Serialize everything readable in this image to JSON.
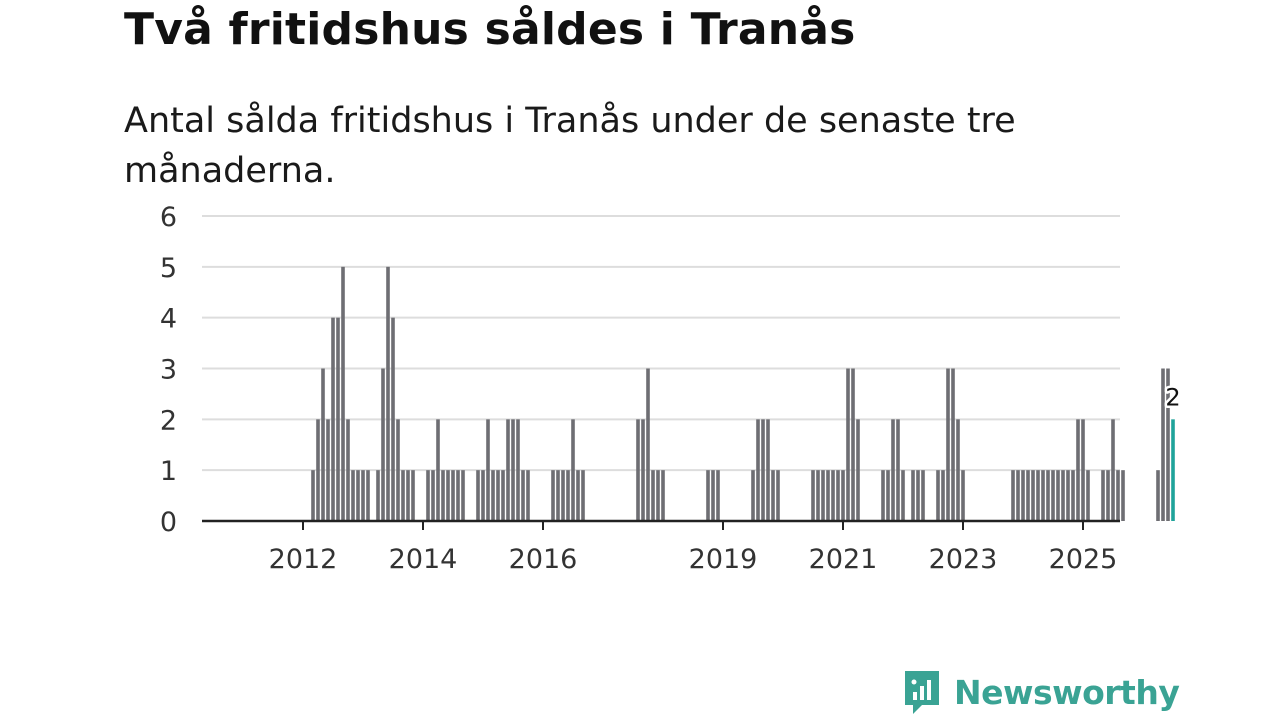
{
  "title": "Två fritidshus såldes i Tranås",
  "subtitle": "Antal sålda fritidshus i Tranås under de senaste tre månaderna.",
  "brand": {
    "name": "Newsworthy"
  },
  "colors": {
    "bar": "#6e6e73",
    "highlight": "#1fa39a",
    "grid": "#dddddd",
    "axis": "#222222"
  },
  "chart_data": {
    "type": "bar",
    "title": "Två fritidshus såldes i Tranås",
    "xlabel": "",
    "ylabel": "",
    "ylim": [
      0,
      6
    ],
    "yticks": [
      0,
      1,
      2,
      3,
      4,
      5,
      6
    ],
    "x_start_month": "2011-07",
    "xticks": [
      {
        "label": "2012",
        "month": "2012-06"
      },
      {
        "label": "2014",
        "month": "2014-06"
      },
      {
        "label": "2016",
        "month": "2016-06"
      },
      {
        "label": "2019",
        "month": "2019-06"
      },
      {
        "label": "2021",
        "month": "2021-06"
      },
      {
        "label": "2023",
        "month": "2023-06"
      },
      {
        "label": "2025",
        "month": "2025-06"
      }
    ],
    "values": [
      0,
      0,
      0,
      0,
      0,
      0,
      0,
      0,
      0,
      0,
      0,
      1,
      2,
      3,
      2,
      4,
      4,
      5,
      2,
      1,
      1,
      1,
      1,
      0,
      1,
      3,
      5,
      4,
      2,
      1,
      1,
      1,
      0,
      0,
      1,
      1,
      2,
      1,
      1,
      1,
      1,
      1,
      0,
      0,
      1,
      1,
      2,
      1,
      1,
      1,
      2,
      2,
      2,
      1,
      1,
      0,
      0,
      0,
      0,
      1,
      1,
      1,
      1,
      2,
      1,
      1,
      0,
      0,
      0,
      0,
      0,
      0,
      0,
      0,
      0,
      0,
      2,
      2,
      3,
      1,
      1,
      1,
      0,
      0,
      0,
      0,
      0,
      0,
      0,
      0,
      1,
      1,
      1,
      0,
      0,
      0,
      0,
      0,
      0,
      1,
      2,
      2,
      2,
      1,
      1,
      0,
      0,
      0,
      0,
      0,
      0,
      1,
      1,
      1,
      1,
      1,
      1,
      1,
      3,
      3,
      2,
      0,
      0,
      0,
      0,
      1,
      1,
      2,
      2,
      1,
      0,
      1,
      1,
      1,
      0,
      0,
      1,
      1,
      3,
      3,
      2,
      1,
      0,
      0,
      0,
      0,
      0,
      0,
      0,
      0,
      0,
      1,
      1,
      1,
      1,
      1,
      1,
      1,
      1,
      1,
      1,
      1,
      1,
      1,
      2,
      2,
      1,
      0,
      0,
      1,
      1,
      2,
      1,
      1,
      0,
      0,
      0,
      0,
      0,
      0,
      1,
      3,
      3,
      2
    ],
    "highlight": {
      "last_value": 2,
      "label": "2"
    }
  }
}
